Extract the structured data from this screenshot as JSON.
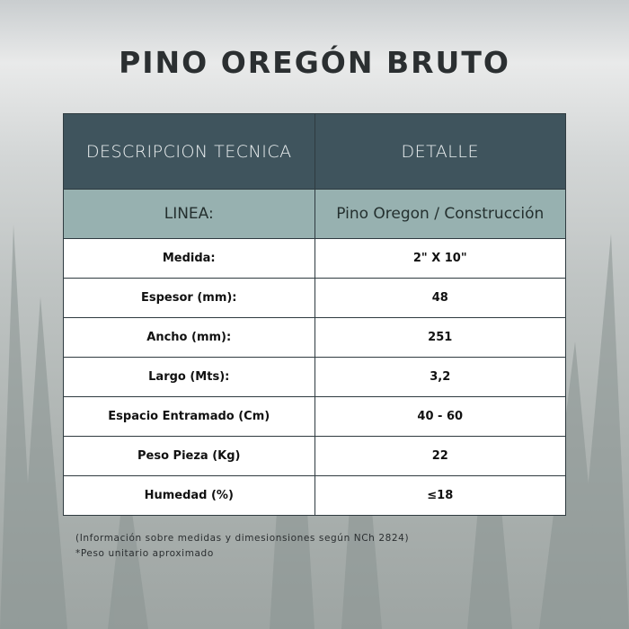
{
  "title": "PINO OREGÓN BRUTO",
  "table": {
    "headers": [
      "DESCRIPCION TECNICA",
      "DETALLE"
    ],
    "line": {
      "label": "LINEA:",
      "value": "Pino Oregon / Construcción"
    },
    "rows": [
      {
        "label": "Medida:",
        "value": "2\" X 10\""
      },
      {
        "label": "Espesor (mm):",
        "value": "48"
      },
      {
        "label": "Ancho (mm):",
        "value": "251"
      },
      {
        "label": "Largo (Mts):",
        "value": "3,2"
      },
      {
        "label": "Espacio Entramado (Cm)",
        "value": "40 - 60"
      },
      {
        "label": "Peso Pieza (Kg)",
        "value": "22"
      },
      {
        "label": "Humedad (%)",
        "value": "≤18"
      }
    ]
  },
  "notes": [
    "(Información sobre medidas y dimesionsiones según NCh 2824)",
    "*Peso unitario aproximado"
  ],
  "colors": {
    "header": "#3f545d",
    "line_row": "#97b1b0",
    "row": "#ffffff"
  }
}
